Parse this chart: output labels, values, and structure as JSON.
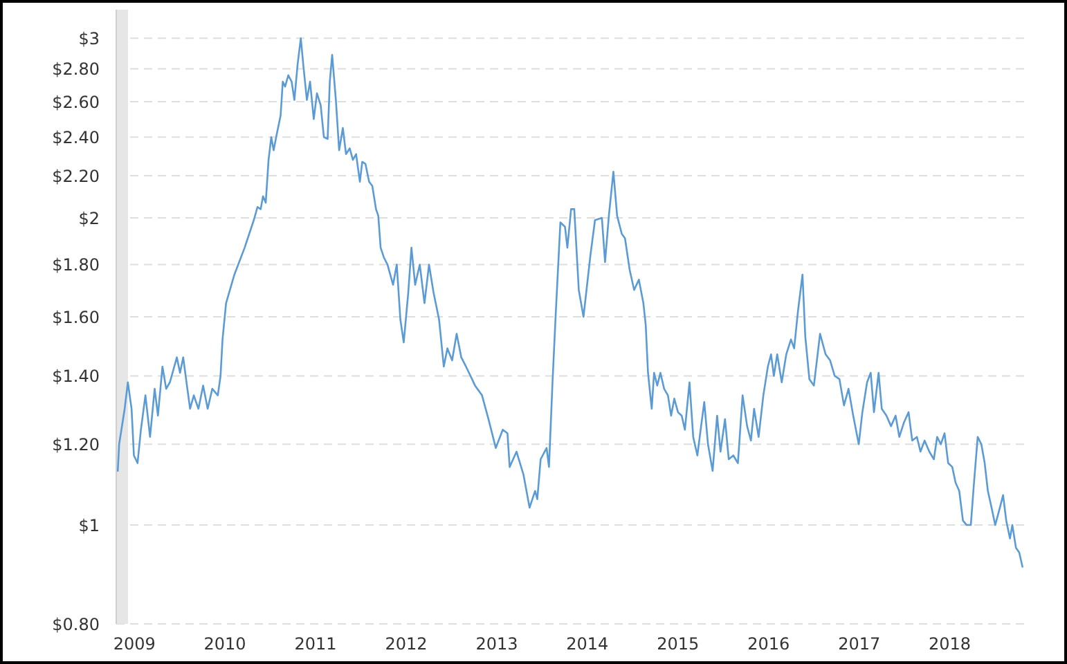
{
  "chart_data": {
    "type": "line",
    "color": "#5b9bd5",
    "x": [
      2008.817,
      2008.832,
      2008.893,
      2008.928,
      2008.969,
      2008.995,
      2009.035,
      2009.072,
      2009.122,
      2009.173,
      2009.224,
      2009.26,
      2009.31,
      2009.351,
      2009.392,
      2009.469,
      2009.504,
      2009.539,
      2009.58,
      2009.615,
      2009.656,
      2009.707,
      2009.759,
      2009.809,
      2009.86,
      2009.921,
      2009.951,
      2009.973,
      2010.012,
      2010.104,
      2010.217,
      2010.318,
      2010.359,
      2010.394,
      2010.42,
      2010.45,
      2010.481,
      2010.511,
      2010.537,
      2010.573,
      2010.614,
      2010.638,
      2010.664,
      2010.699,
      2010.736,
      2010.766,
      2010.802,
      2010.837,
      2010.867,
      2010.904,
      2010.939,
      2010.98,
      2011.015,
      2011.056,
      2011.092,
      2011.133,
      2011.157,
      2011.183,
      2011.224,
      2011.26,
      2011.301,
      2011.336,
      2011.377,
      2011.412,
      2011.447,
      2011.489,
      2011.515,
      2011.55,
      2011.591,
      2011.626,
      2011.667,
      2011.692,
      2011.718,
      2011.753,
      2011.794,
      2011.855,
      2011.896,
      2011.936,
      2011.973,
      2012.023,
      2012.058,
      2012.099,
      2012.15,
      2012.202,
      2012.252,
      2012.302,
      2012.363,
      2012.415,
      2012.455,
      2012.507,
      2012.557,
      2012.608,
      2012.66,
      2012.71,
      2012.76,
      2012.837,
      2012.908,
      2012.989,
      2013.066,
      2013.118,
      2013.142,
      2013.218,
      2013.295,
      2013.362,
      2013.423,
      2013.447,
      2013.484,
      2013.55,
      2013.576,
      2013.615,
      2013.652,
      2013.702,
      2013.753,
      2013.779,
      2013.82,
      2013.855,
      2013.905,
      2013.957,
      2014.034,
      2014.084,
      2014.16,
      2014.195,
      2014.237,
      2014.287,
      2014.328,
      2014.379,
      2014.415,
      2014.466,
      2014.516,
      2014.568,
      2014.618,
      2014.644,
      2014.669,
      2014.71,
      2014.736,
      2014.771,
      2014.806,
      2014.847,
      2014.889,
      2014.924,
      2014.959,
      2015.0,
      2015.041,
      2015.076,
      2015.127,
      2015.168,
      2015.214,
      2015.255,
      2015.29,
      2015.331,
      2015.382,
      2015.432,
      2015.469,
      2015.519,
      2015.56,
      2015.611,
      2015.661,
      2015.713,
      2015.763,
      2015.805,
      2015.84,
      2015.89,
      2015.942,
      2015.992,
      2016.027,
      2016.058,
      2016.095,
      2016.145,
      2016.195,
      2016.247,
      2016.282,
      2016.324,
      2016.374,
      2016.405,
      2016.45,
      2016.5,
      2016.568,
      2016.629,
      2016.679,
      2016.73,
      2016.782,
      2016.832,
      2016.882,
      2016.934,
      2016.995,
      2017.035,
      2017.087,
      2017.127,
      2017.163,
      2017.214,
      2017.249,
      2017.301,
      2017.351,
      2017.402,
      2017.443,
      2017.493,
      2017.545,
      2017.585,
      2017.637,
      2017.676,
      2017.722,
      2017.774,
      2017.824,
      2017.86,
      2017.901,
      2017.942,
      2017.982,
      2018.027,
      2018.064,
      2018.104,
      2018.145,
      2018.186,
      2018.232,
      2018.267,
      2018.308,
      2018.348,
      2018.385,
      2018.42,
      2018.461,
      2018.501,
      2018.553,
      2018.588,
      2018.623,
      2018.664,
      2018.69,
      2018.73,
      2018.766,
      2018.802
    ],
    "values": [
      1.13,
      1.2,
      1.3,
      1.38,
      1.3,
      1.17,
      1.15,
      1.24,
      1.34,
      1.22,
      1.36,
      1.28,
      1.43,
      1.36,
      1.38,
      1.46,
      1.41,
      1.46,
      1.37,
      1.3,
      1.34,
      1.3,
      1.37,
      1.3,
      1.36,
      1.34,
      1.4,
      1.52,
      1.65,
      1.76,
      1.87,
      1.99,
      2.05,
      2.04,
      2.1,
      2.07,
      2.28,
      2.4,
      2.33,
      2.42,
      2.52,
      2.72,
      2.69,
      2.76,
      2.72,
      2.61,
      2.83,
      3.0,
      2.81,
      2.61,
      2.72,
      2.5,
      2.65,
      2.58,
      2.4,
      2.39,
      2.72,
      2.89,
      2.61,
      2.33,
      2.45,
      2.31,
      2.34,
      2.28,
      2.31,
      2.17,
      2.27,
      2.26,
      2.17,
      2.15,
      2.04,
      2.01,
      1.87,
      1.83,
      1.8,
      1.72,
      1.8,
      1.59,
      1.51,
      1.69,
      1.87,
      1.72,
      1.8,
      1.65,
      1.8,
      1.69,
      1.59,
      1.43,
      1.49,
      1.45,
      1.54,
      1.46,
      1.43,
      1.4,
      1.37,
      1.34,
      1.27,
      1.19,
      1.24,
      1.23,
      1.14,
      1.18,
      1.12,
      1.04,
      1.08,
      1.06,
      1.16,
      1.19,
      1.14,
      1.38,
      1.62,
      1.98,
      1.96,
      1.87,
      2.04,
      2.04,
      1.7,
      1.6,
      1.84,
      1.99,
      2.0,
      1.81,
      2.01,
      2.22,
      2.01,
      1.93,
      1.91,
      1.78,
      1.7,
      1.74,
      1.65,
      1.57,
      1.41,
      1.3,
      1.41,
      1.37,
      1.41,
      1.36,
      1.34,
      1.28,
      1.33,
      1.29,
      1.28,
      1.24,
      1.38,
      1.22,
      1.17,
      1.25,
      1.32,
      1.2,
      1.13,
      1.28,
      1.18,
      1.27,
      1.16,
      1.17,
      1.15,
      1.34,
      1.25,
      1.21,
      1.3,
      1.22,
      1.34,
      1.43,
      1.47,
      1.4,
      1.47,
      1.38,
      1.47,
      1.52,
      1.49,
      1.62,
      1.76,
      1.53,
      1.39,
      1.37,
      1.54,
      1.47,
      1.45,
      1.4,
      1.39,
      1.31,
      1.36,
      1.28,
      1.2,
      1.29,
      1.38,
      1.41,
      1.29,
      1.41,
      1.3,
      1.28,
      1.25,
      1.28,
      1.22,
      1.26,
      1.29,
      1.21,
      1.22,
      1.18,
      1.21,
      1.18,
      1.16,
      1.22,
      1.2,
      1.23,
      1.15,
      1.14,
      1.1,
      1.08,
      1.01,
      1.0,
      1.0,
      1.1,
      1.22,
      1.2,
      1.15,
      1.08,
      1.04,
      1.0,
      1.04,
      1.07,
      1.01,
      0.97,
      1.0,
      0.95,
      0.94,
      0.91
    ],
    "xlim": [
      2008.8,
      2018.82
    ],
    "xticks": [
      2009,
      2010,
      2011,
      2012,
      2013,
      2014,
      2015,
      2016,
      2017,
      2018
    ],
    "ylim": [
      0.8,
      3.2
    ],
    "yticks": [
      {
        "value": 0.8,
        "label": "$0.80"
      },
      {
        "value": 1,
        "label": "$1"
      },
      {
        "value": 1.2,
        "label": "$1.20"
      },
      {
        "value": 1.4,
        "label": "$1.40"
      },
      {
        "value": 1.6,
        "label": "$1.60"
      },
      {
        "value": 1.8,
        "label": "$1.80"
      },
      {
        "value": 2,
        "label": "$2"
      },
      {
        "value": 2.2,
        "label": "$2.20"
      },
      {
        "value": 2.4,
        "label": "$2.40"
      },
      {
        "value": 2.6,
        "label": "$2.60"
      },
      {
        "value": 2.8,
        "label": "$2.80"
      },
      {
        "value": 3,
        "label": "$3"
      }
    ],
    "log": true,
    "grid": "y",
    "bands": [
      {
        "axis": "x",
        "from": 2008.8,
        "to": 2008.93,
        "color": "#e6e6e6"
      }
    ]
  }
}
